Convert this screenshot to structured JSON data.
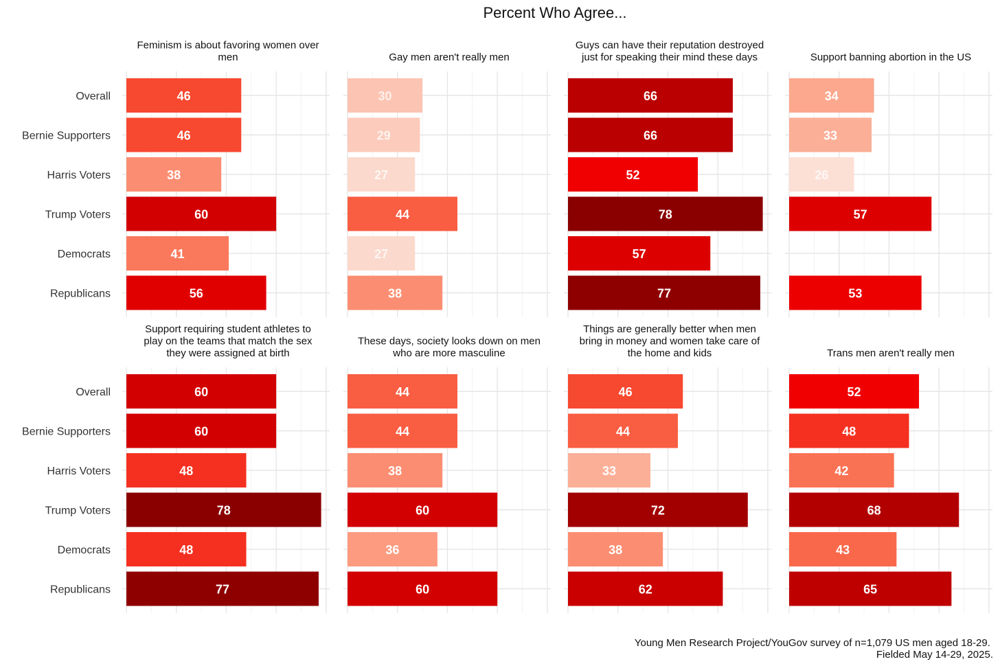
{
  "chart_data": {
    "type": "bar",
    "orientation": "horizontal",
    "title": "Percent Who Agree...",
    "caption": [
      "Young Men Research Project/YouGov survey of n=1,079 US men aged 18-29.",
      "Fielded May 14-29, 2025."
    ],
    "categories": [
      "Overall",
      "Bernie Supporters",
      "Harris Voters",
      "Trump Voters",
      "Democrats",
      "Republicans"
    ],
    "xlim": [
      0,
      80
    ],
    "grid": true,
    "facets": [
      {
        "title": [
          "Feminism is about favoring women over",
          "men"
        ],
        "values": [
          46,
          46,
          38,
          60,
          41,
          56
        ]
      },
      {
        "title": [
          "Gay men aren't really men"
        ],
        "values": [
          30,
          29,
          27,
          44,
          27,
          38
        ]
      },
      {
        "title": [
          "Guys can have their reputation destroyed",
          "just for speaking their mind these days"
        ],
        "values": [
          66,
          66,
          52,
          78,
          57,
          77
        ]
      },
      {
        "title": [
          "Support banning abortion in the US"
        ],
        "values": [
          34,
          33,
          26,
          57,
          null,
          53
        ]
      },
      {
        "title": [
          "Support requiring student athletes to",
          "play on the teams that match the sex",
          "they were assigned at birth"
        ],
        "values": [
          60,
          60,
          48,
          78,
          48,
          77
        ]
      },
      {
        "title": [
          "These days, society looks down on men",
          "who are more masculine"
        ],
        "values": [
          44,
          44,
          38,
          60,
          36,
          60
        ]
      },
      {
        "title": [
          "Things are generally better when men",
          "bring in money and women take care of",
          "the home and kids"
        ],
        "values": [
          46,
          44,
          33,
          72,
          38,
          62
        ]
      },
      {
        "title": [
          "Trans men aren't really men"
        ],
        "values": [
          52,
          48,
          42,
          68,
          43,
          65
        ]
      }
    ]
  }
}
